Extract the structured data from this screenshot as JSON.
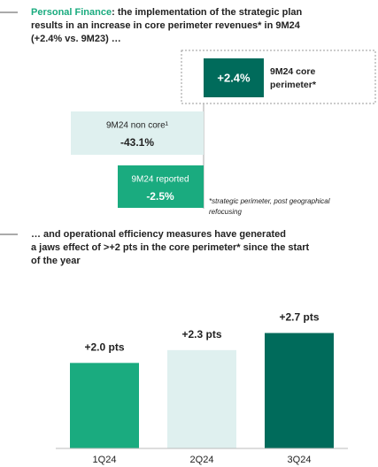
{
  "heading1": {
    "highlight": "Personal Finance",
    "rest": ": the implementation of the strategic plan",
    "lines": [
      "results in an increase in core perimeter revenues* in 9M24",
      "(+2.4% vs. 9M23) …"
    ]
  },
  "bridge": {
    "core": {
      "value": "+2.4%",
      "label_lines": [
        "9M24 core",
        "perimeter*"
      ]
    },
    "non_core": {
      "label": "9M24 non core¹",
      "value": "-43.1%"
    },
    "reported": {
      "label": "9M24 reported",
      "value": "-2.5%"
    },
    "footnote": [
      "*strategic perimeter, post geographical",
      "refocusing"
    ]
  },
  "heading2": {
    "lines": [
      "… and operational efficiency measures have generated",
      "a jaws effect of >+2 pts in the core perimeter* since the start",
      "of the year"
    ]
  },
  "chart_data": {
    "type": "bar",
    "categories": [
      "1Q24",
      "2Q24",
      "3Q24"
    ],
    "values": [
      2.0,
      2.3,
      2.7
    ],
    "value_labels": [
      "+2.0 pts",
      "+2.3 pts",
      "+2.7 pts"
    ],
    "colors": [
      "#1aab7f",
      "#dff0ef",
      "#006b5b"
    ],
    "ylim": [
      0,
      3
    ]
  }
}
